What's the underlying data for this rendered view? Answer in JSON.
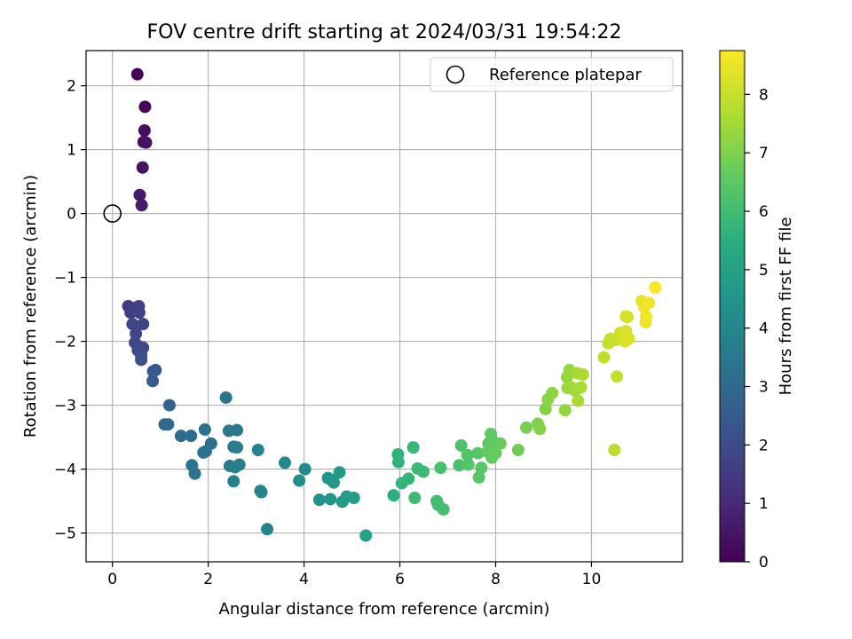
{
  "chart_data": {
    "type": "scatter",
    "title": "FOV centre drift starting at 2024/03/31 19:54:22",
    "xlabel": "Angular distance from reference (arcmin)",
    "ylabel": "Rotation from reference (arcmin)",
    "xlim": [
      -0.55,
      11.9
    ],
    "ylim": [
      -5.45,
      2.55
    ],
    "xticks": [
      0,
      2,
      4,
      6,
      8,
      10
    ],
    "yticks": [
      -5,
      -4,
      -3,
      -2,
      -1,
      0,
      1,
      2
    ],
    "grid": true,
    "legend": {
      "placement": "top-right",
      "entries": [
        "Reference platepar"
      ]
    },
    "reference_point": {
      "x": 0,
      "y": 0
    },
    "colorbar": {
      "label": "Hours from first FF file",
      "colormap": "viridis",
      "range": [
        0,
        8.75
      ],
      "ticks": [
        0,
        1,
        2,
        3,
        4,
        5,
        6,
        7,
        8
      ]
    },
    "points": [
      {
        "x": 0.52,
        "y": 2.18,
        "c": 0.1
      },
      {
        "x": 0.68,
        "y": 1.67,
        "c": 0.2
      },
      {
        "x": 0.67,
        "y": 1.3,
        "c": 0.3
      },
      {
        "x": 0.65,
        "y": 1.12,
        "c": 0.35
      },
      {
        "x": 0.7,
        "y": 1.11,
        "c": 0.4
      },
      {
        "x": 0.63,
        "y": 0.72,
        "c": 0.5
      },
      {
        "x": 0.57,
        "y": 0.29,
        "c": 0.6
      },
      {
        "x": 0.61,
        "y": 0.13,
        "c": 0.7
      },
      {
        "x": 0.33,
        "y": -1.45,
        "c": 1.5
      },
      {
        "x": 0.38,
        "y": -1.55,
        "c": 1.55
      },
      {
        "x": 0.45,
        "y": -1.48,
        "c": 1.6
      },
      {
        "x": 0.55,
        "y": -1.45,
        "c": 1.65
      },
      {
        "x": 0.56,
        "y": -1.55,
        "c": 1.7
      },
      {
        "x": 0.42,
        "y": -1.73,
        "c": 1.75
      },
      {
        "x": 0.64,
        "y": -1.73,
        "c": 1.78
      },
      {
        "x": 0.49,
        "y": -1.88,
        "c": 1.8
      },
      {
        "x": 0.47,
        "y": -2.02,
        "c": 1.85
      },
      {
        "x": 0.55,
        "y": -2.08,
        "c": 1.9
      },
      {
        "x": 0.64,
        "y": -2.1,
        "c": 1.95
      },
      {
        "x": 0.53,
        "y": -2.14,
        "c": 2.0
      },
      {
        "x": 0.6,
        "y": -2.22,
        "c": 2.05
      },
      {
        "x": 0.6,
        "y": -2.29,
        "c": 2.1
      },
      {
        "x": 0.85,
        "y": -2.47,
        "c": 2.4
      },
      {
        "x": 0.9,
        "y": -2.45,
        "c": 2.45
      },
      {
        "x": 0.84,
        "y": -2.62,
        "c": 2.5
      },
      {
        "x": 1.19,
        "y": -3.0,
        "c": 2.8
      },
      {
        "x": 1.09,
        "y": -3.3,
        "c": 2.9
      },
      {
        "x": 1.16,
        "y": -3.3,
        "c": 2.95
      },
      {
        "x": 1.43,
        "y": -3.48,
        "c": 3.05
      },
      {
        "x": 1.64,
        "y": -3.48,
        "c": 3.1
      },
      {
        "x": 1.93,
        "y": -3.38,
        "c": 3.15
      },
      {
        "x": 2.06,
        "y": -3.6,
        "c": 3.2
      },
      {
        "x": 1.9,
        "y": -3.74,
        "c": 3.25
      },
      {
        "x": 1.95,
        "y": -3.72,
        "c": 3.3
      },
      {
        "x": 1.66,
        "y": -3.94,
        "c": 3.35
      },
      {
        "x": 1.72,
        "y": -4.07,
        "c": 3.4
      },
      {
        "x": 2.37,
        "y": -2.88,
        "c": 3.3
      },
      {
        "x": 2.43,
        "y": -3.4,
        "c": 3.45
      },
      {
        "x": 2.6,
        "y": -3.39,
        "c": 3.5
      },
      {
        "x": 2.53,
        "y": -3.65,
        "c": 3.55
      },
      {
        "x": 2.6,
        "y": -3.66,
        "c": 3.6
      },
      {
        "x": 2.45,
        "y": -3.95,
        "c": 3.65
      },
      {
        "x": 2.56,
        "y": -3.97,
        "c": 3.7
      },
      {
        "x": 2.65,
        "y": -3.93,
        "c": 3.75
      },
      {
        "x": 2.53,
        "y": -4.19,
        "c": 3.8
      },
      {
        "x": 3.04,
        "y": -3.7,
        "c": 3.85
      },
      {
        "x": 3.09,
        "y": -4.34,
        "c": 3.9
      },
      {
        "x": 3.11,
        "y": -4.36,
        "c": 3.95
      },
      {
        "x": 3.23,
        "y": -4.94,
        "c": 3.9
      },
      {
        "x": 3.6,
        "y": -3.9,
        "c": 4.1
      },
      {
        "x": 4.02,
        "y": -4.0,
        "c": 4.2
      },
      {
        "x": 3.9,
        "y": -4.18,
        "c": 4.3
      },
      {
        "x": 4.32,
        "y": -4.48,
        "c": 4.4
      },
      {
        "x": 4.5,
        "y": -4.14,
        "c": 4.5
      },
      {
        "x": 4.57,
        "y": -4.17,
        "c": 4.55
      },
      {
        "x": 4.62,
        "y": -4.21,
        "c": 4.6
      },
      {
        "x": 4.55,
        "y": -4.47,
        "c": 4.65
      },
      {
        "x": 4.74,
        "y": -4.05,
        "c": 4.7
      },
      {
        "x": 4.8,
        "y": -4.51,
        "c": 4.75
      },
      {
        "x": 4.89,
        "y": -4.43,
        "c": 4.8
      },
      {
        "x": 5.04,
        "y": -4.45,
        "c": 4.85
      },
      {
        "x": 5.29,
        "y": -5.04,
        "c": 5.0
      },
      {
        "x": 5.87,
        "y": -4.41,
        "c": 5.5
      },
      {
        "x": 5.96,
        "y": -3.77,
        "c": 5.6
      },
      {
        "x": 5.97,
        "y": -3.89,
        "c": 5.65
      },
      {
        "x": 6.04,
        "y": -4.22,
        "c": 5.7
      },
      {
        "x": 6.18,
        "y": -4.15,
        "c": 5.75
      },
      {
        "x": 6.28,
        "y": -3.66,
        "c": 5.8
      },
      {
        "x": 6.37,
        "y": -3.99,
        "c": 5.85
      },
      {
        "x": 6.49,
        "y": -4.04,
        "c": 5.9
      },
      {
        "x": 6.31,
        "y": -4.45,
        "c": 5.95
      },
      {
        "x": 6.77,
        "y": -4.5,
        "c": 6.0
      },
      {
        "x": 6.8,
        "y": -4.56,
        "c": 6.05
      },
      {
        "x": 6.91,
        "y": -4.63,
        "c": 6.1
      },
      {
        "x": 6.85,
        "y": -3.98,
        "c": 6.15
      },
      {
        "x": 7.24,
        "y": -3.94,
        "c": 6.2
      },
      {
        "x": 7.28,
        "y": -3.63,
        "c": 6.25
      },
      {
        "x": 7.41,
        "y": -3.78,
        "c": 6.3
      },
      {
        "x": 7.43,
        "y": -3.93,
        "c": 6.35
      },
      {
        "x": 7.63,
        "y": -3.75,
        "c": 6.4
      },
      {
        "x": 7.65,
        "y": -4.13,
        "c": 6.45
      },
      {
        "x": 7.7,
        "y": -3.98,
        "c": 6.45
      },
      {
        "x": 7.85,
        "y": -3.6,
        "c": 6.5
      },
      {
        "x": 7.9,
        "y": -3.45,
        "c": 6.55
      },
      {
        "x": 7.93,
        "y": -3.55,
        "c": 6.55
      },
      {
        "x": 7.83,
        "y": -3.73,
        "c": 6.6
      },
      {
        "x": 7.95,
        "y": -3.66,
        "c": 6.6
      },
      {
        "x": 7.92,
        "y": -3.82,
        "c": 6.65
      },
      {
        "x": 8.0,
        "y": -3.75,
        "c": 6.65
      },
      {
        "x": 8.1,
        "y": -3.6,
        "c": 6.7
      },
      {
        "x": 8.47,
        "y": -3.7,
        "c": 6.8
      },
      {
        "x": 8.64,
        "y": -3.35,
        "c": 6.9
      },
      {
        "x": 8.88,
        "y": -3.29,
        "c": 7.0
      },
      {
        "x": 8.92,
        "y": -3.37,
        "c": 7.05
      },
      {
        "x": 9.04,
        "y": -3.06,
        "c": 7.1
      },
      {
        "x": 9.09,
        "y": -2.91,
        "c": 7.15
      },
      {
        "x": 9.18,
        "y": -2.81,
        "c": 7.2
      },
      {
        "x": 9.45,
        "y": -3.08,
        "c": 7.25
      },
      {
        "x": 9.49,
        "y": -2.56,
        "c": 7.3
      },
      {
        "x": 9.54,
        "y": -2.45,
        "c": 7.35
      },
      {
        "x": 9.5,
        "y": -2.73,
        "c": 7.4
      },
      {
        "x": 9.58,
        "y": -2.72,
        "c": 7.45
      },
      {
        "x": 9.66,
        "y": -2.77,
        "c": 7.5
      },
      {
        "x": 9.71,
        "y": -2.5,
        "c": 7.55
      },
      {
        "x": 9.78,
        "y": -2.72,
        "c": 7.6
      },
      {
        "x": 9.82,
        "y": -2.52,
        "c": 7.65
      },
      {
        "x": 9.72,
        "y": -2.93,
        "c": 7.6
      },
      {
        "x": 10.26,
        "y": -2.25,
        "c": 7.9
      },
      {
        "x": 10.35,
        "y": -2.03,
        "c": 7.95
      },
      {
        "x": 10.4,
        "y": -1.96,
        "c": 8.0
      },
      {
        "x": 10.5,
        "y": -1.98,
        "c": 8.05
      },
      {
        "x": 10.53,
        "y": -2.55,
        "c": 7.95
      },
      {
        "x": 10.48,
        "y": -3.7,
        "c": 7.8
      },
      {
        "x": 10.6,
        "y": -1.87,
        "c": 8.1
      },
      {
        "x": 10.66,
        "y": -1.93,
        "c": 8.15
      },
      {
        "x": 10.72,
        "y": -1.61,
        "c": 8.2
      },
      {
        "x": 10.75,
        "y": -1.62,
        "c": 8.22
      },
      {
        "x": 10.72,
        "y": -1.84,
        "c": 8.25
      },
      {
        "x": 10.78,
        "y": -1.96,
        "c": 8.3
      },
      {
        "x": 10.7,
        "y": -2.0,
        "c": 8.28
      },
      {
        "x": 11.05,
        "y": -1.37,
        "c": 8.45
      },
      {
        "x": 11.1,
        "y": -1.46,
        "c": 8.5
      },
      {
        "x": 11.14,
        "y": -1.61,
        "c": 8.55
      },
      {
        "x": 11.13,
        "y": -1.7,
        "c": 8.55
      },
      {
        "x": 11.2,
        "y": -1.4,
        "c": 8.6
      },
      {
        "x": 11.33,
        "y": -1.16,
        "c": 8.7
      }
    ]
  }
}
